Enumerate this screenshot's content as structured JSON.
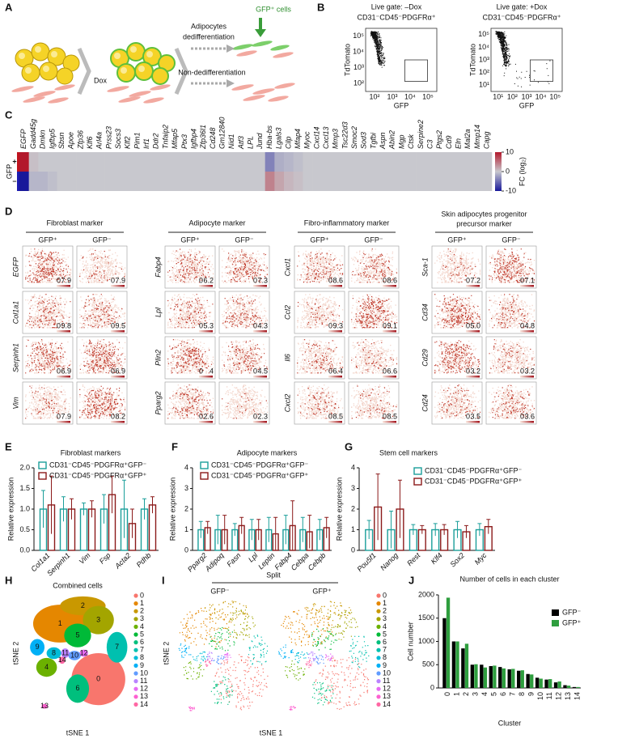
{
  "panel_labels": [
    "A",
    "B",
    "C",
    "D",
    "E",
    "F",
    "G",
    "H",
    "I",
    "J"
  ],
  "panel_a": {
    "dox": "Dox",
    "dedifferentiation": [
      "Adipocytes",
      "dedifferentiation"
    ],
    "gfp_cells": "GFP⁺ cells",
    "non_dedifferentiation": "Non-dedifferentiation"
  },
  "panel_b": {
    "plots": [
      {
        "title": "Live gate: –Dox",
        "gate": "CD31⁻CD45⁻PDGFRα⁺",
        "xlabel": "GFP",
        "ylabel": "TdTomato",
        "xticks": [
          "10²",
          "10³",
          "10⁴",
          "10⁵"
        ],
        "yticks": [
          "10⁵",
          "10⁴",
          "10³",
          "10²"
        ]
      },
      {
        "title": "Live gate: +Dox",
        "gate": "CD31⁻CD45⁻PDGFRα⁺",
        "xlabel": "GFP",
        "ylabel": "TdTomato",
        "xticks": [
          "10¹",
          "10²",
          "10³",
          "10⁴",
          "10⁵"
        ],
        "yticks": [
          "10⁵",
          "10⁴",
          "10³",
          "10²",
          "10¹"
        ]
      }
    ]
  },
  "panel_c": {
    "row_title": "GFP",
    "rows": [
      "+",
      "–"
    ],
    "genes": [
      "EGFP",
      "Gadd45g",
      "Dmkn",
      "Igfbp5",
      "Sbsn",
      "Apoe",
      "Zfp36",
      "Klf6",
      "Arl4a",
      "Prss23",
      "Socs3",
      "Klf2",
      "Pim1",
      "Irf1",
      "Ddr2",
      "Tnfaip2",
      "Mfap5",
      "Ptx3",
      "Igfbp4",
      "Zfp36l1",
      "Cd248",
      "Gm12840",
      "Nid1",
      "Atf3",
      "LPL",
      "Jund",
      "Hba-bs",
      "Lgals3",
      "Cilp",
      "Mfap4",
      "Myoc",
      "Cxcl14",
      "Cxcl13",
      "Mmp3",
      "Tsc22d3",
      "Smoc2",
      "Sod3",
      "Tgfbi",
      "Aspn",
      "Abin2",
      "Mgp",
      "Ctsk",
      "Serpine2",
      "C3",
      "Ptgs2",
      "Cd9",
      "Eln",
      "Mal2a",
      "Mmp14",
      "Capg"
    ],
    "values": [
      [
        10,
        0.5,
        0,
        0,
        0,
        0,
        0,
        0,
        0,
        0,
        0,
        0,
        0,
        0,
        0,
        0,
        0,
        0,
        0,
        0,
        0,
        0,
        0,
        0,
        0,
        0,
        -4,
        -1.5,
        -1,
        -0.5,
        0,
        0,
        0,
        0,
        0,
        0,
        0,
        0,
        0,
        0,
        0,
        0,
        0,
        0,
        0,
        0,
        0,
        0,
        0,
        0
      ],
      [
        -10,
        -1,
        -1,
        -0.5,
        0,
        0,
        0,
        0,
        0,
        0,
        0,
        0,
        0,
        0,
        0,
        0,
        0,
        0,
        0,
        0,
        0,
        0,
        0,
        0,
        0,
        0,
        4,
        2,
        1,
        0.5,
        0,
        0,
        0,
        0,
        0,
        0,
        0,
        0,
        0,
        0,
        0,
        0,
        0,
        0,
        0,
        0,
        0,
        0,
        0,
        0
      ]
    ],
    "colorbar": {
      "lim": [
        -10,
        10
      ],
      "ticks": [
        10,
        0,
        -10
      ],
      "label": "FC (log₂)"
    }
  },
  "panel_d": {
    "scale_min": 0,
    "columns": [
      "GFP⁺",
      "GFP⁻"
    ],
    "groups": [
      {
        "title": [
          "Fibroblast marker"
        ],
        "genes": [
          "EGFP",
          "Col1a1",
          "Serpinh1",
          "Vim"
        ],
        "max": [
          [
            7.9,
            7.9
          ],
          [
            9.8,
            9.5
          ],
          [
            6.9,
            6.9
          ],
          [
            7.9,
            8.2
          ]
        ]
      },
      {
        "title": [
          "Adipocyte marker"
        ],
        "genes": [
          "Fabp4",
          "Lpl",
          "Plin2",
          "Pparg2"
        ],
        "max": [
          [
            6.2,
            7.3
          ],
          [
            5.3,
            4.3
          ],
          [
            4,
            4.5
          ],
          [
            2.6,
            2.3
          ]
        ]
      },
      {
        "title": [
          "Fibro-inflammatory marker"
        ],
        "genes": [
          "Cxcl1",
          "Ccl2",
          "Il6",
          "Cxcl2"
        ],
        "max": [
          [
            8.6,
            8.6
          ],
          [
            9.3,
            9.1
          ],
          [
            6.4,
            6.6
          ],
          [
            8.5,
            8.5
          ]
        ]
      },
      {
        "title": [
          "Skin adipocytes progenitor",
          "precursor marker"
        ],
        "genes": [
          "Sca-1",
          "Cd34",
          "Cd29",
          "Cd24"
        ],
        "max": [
          [
            7.2,
            7.1
          ],
          [
            {
              "value": 5,
              "label": "5.0"
            },
            4.8
          ],
          [
            3.2,
            3.2
          ],
          [
            3.5,
            3.6
          ]
        ]
      }
    ]
  },
  "chart_data": [
    {
      "type": "bar",
      "title": "Fibroblast markers",
      "ylabel": "Relative expression",
      "categories": [
        "Col1a1",
        "Serpinh1",
        "Vim",
        "Fsp",
        "Acta2",
        "Pdhb"
      ],
      "series": [
        {
          "name": "CD31⁻CD45⁻PDGFRα⁺GFP⁻",
          "color": "#1a9e9a",
          "values": [
            1,
            1,
            1,
            1,
            1,
            1
          ],
          "errors": [
            0.45,
            0.3,
            0.15,
            0.35,
            0.7,
            0.25
          ]
        },
        {
          "name": "CD31⁻CD45⁻PDGFRα⁺GFP⁺",
          "color": "#8b1a1a",
          "values": [
            1.1,
            1,
            1,
            1.35,
            0.65,
            1.1
          ],
          "errors": [
            0.7,
            0.25,
            0.2,
            0.45,
            0.35,
            0.2
          ]
        }
      ],
      "ylim": [
        0,
        2
      ],
      "yticks": [
        {
          "value": 0,
          "label": "0.0"
        },
        0.5,
        {
          "value": 1,
          "label": "1.0"
        },
        1.5,
        {
          "value": 2,
          "label": "2.0"
        }
      ]
    },
    {
      "type": "bar",
      "title": "Adipocyte markers",
      "ylabel": "Relative expression",
      "categories": [
        "Pparg2",
        "Adipoq",
        "Fasn",
        "Lpl",
        "Leptin",
        "Fabp4",
        "Cebpa",
        "Cebpb"
      ],
      "series": [
        {
          "name": "CD31⁻CD45⁻PDGFRα⁺GFP⁻",
          "color": "#1a9e9a",
          "values": [
            1,
            1,
            1,
            1,
            1,
            1,
            1,
            1
          ],
          "errors": [
            0.4,
            0.7,
            0.3,
            0.5,
            0.6,
            0.7,
            0.6,
            0.5
          ]
        },
        {
          "name": "CD31⁻CD45⁻PDGFRα⁺GFP⁺",
          "color": "#8b1a1a",
          "values": [
            1.1,
            1,
            1.2,
            1,
            0.8,
            1.2,
            0.9,
            1.1
          ],
          "errors": [
            0.3,
            0.7,
            0.4,
            0.5,
            0.8,
            1.2,
            0.8,
            0.5
          ]
        }
      ],
      "ylim": [
        0,
        4
      ],
      "yticks": [
        0,
        1,
        2,
        3,
        4
      ]
    },
    {
      "type": "bar",
      "title": "Stem cell markers",
      "ylabel": "Relative expression",
      "categories": [
        "Pou5f1",
        "Nanog",
        "Rest",
        "Klf4",
        "Sox2",
        "Myc"
      ],
      "series": [
        {
          "name": "CD31⁻CD45⁻PDGFRα⁺GFP⁻",
          "color": "#1a9e9a",
          "values": [
            1,
            1,
            1,
            1,
            1,
            1
          ],
          "errors": [
            0.45,
            0.9,
            0.25,
            0.3,
            0.4,
            0.3
          ]
        },
        {
          "name": "CD31⁻CD45⁻PDGFRα⁺GFP⁺",
          "color": "#8b1a1a",
          "values": [
            2.1,
            2,
            1,
            1,
            0.9,
            1.15
          ],
          "errors": [
            1.6,
            1.4,
            0.2,
            0.25,
            0.3,
            0.35
          ]
        }
      ],
      "ylim": [
        0,
        4
      ],
      "yticks": [
        0,
        1,
        2,
        3,
        4
      ]
    },
    {
      "type": "bar",
      "title": "Number of cells in each cluster",
      "xlabel": "Cluster",
      "ylabel": "Cell number",
      "categories": [
        "0",
        "1",
        "2",
        "3",
        "4",
        "5",
        "6",
        "7",
        "8",
        "9",
        "10",
        "11",
        "12",
        "13",
        "14"
      ],
      "series": [
        {
          "name": "GFP⁻",
          "color": "#000000",
          "values": [
            1500,
            1000,
            850,
            500,
            500,
            470,
            450,
            400,
            370,
            300,
            220,
            180,
            120,
            60,
            20
          ]
        },
        {
          "name": "GFP⁺",
          "color": "#2e9e3e",
          "values": [
            1940,
            1000,
            950,
            510,
            440,
            480,
            420,
            410,
            380,
            290,
            200,
            190,
            140,
            50,
            20
          ]
        }
      ],
      "ylim": [
        0,
        2000
      ],
      "yticks": [
        0,
        500,
        1000,
        1500,
        2000
      ]
    }
  ],
  "panel_h": {
    "title": "Combined cells",
    "xlabel": "tSNE 1",
    "ylabel": "tSNE 2"
  },
  "panel_i": {
    "title": "Split",
    "panels": [
      "GFP⁻",
      "GFP⁺"
    ],
    "xlabel": "tSNE 1",
    "ylabel": "tSNE 2"
  },
  "clusters": {
    "labels": [
      0,
      1,
      2,
      3,
      4,
      5,
      6,
      7,
      8,
      9,
      10,
      11,
      12,
      13,
      14
    ],
    "colors": [
      "#F8766D",
      "#E58700",
      "#C99800",
      "#A3A500",
      "#6BB100",
      "#00BA38",
      "#00BF7D",
      "#00C0AF",
      "#00BCD8",
      "#00B0F6",
      "#619CFF",
      "#B983FF",
      "#E76BF3",
      "#FD61D1",
      "#FF67A4"
    ]
  }
}
